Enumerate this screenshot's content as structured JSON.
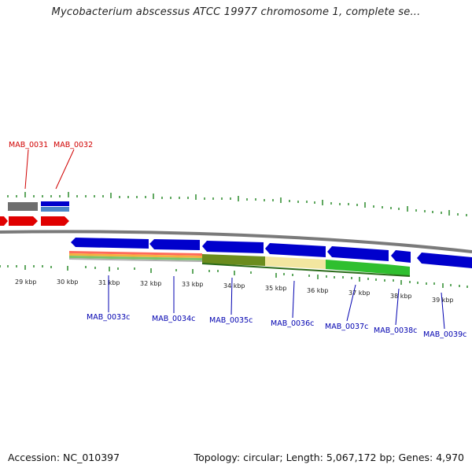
{
  "title": "Mycobacterium abscessus ATCC 19977 chromosome 1, complete se...",
  "footer": {
    "accession": "Accession: NC_010397",
    "summary": "Topology: circular; Length: 5,067,172 bp; Genes: 4,970"
  },
  "axis": {
    "unit": "kbp",
    "tick_labels": [
      "29 kbp",
      "30 kbp",
      "31 kbp",
      "32 kbp",
      "33 kbp",
      "34 kbp",
      "35 kbp",
      "36 kbp",
      "37 kbp",
      "38 kbp",
      "39 kbp"
    ]
  },
  "genes_forward": [
    "MAB_0031",
    "MAB_0032"
  ],
  "genes_reverse": [
    "MAB_0033c",
    "MAB_0034c",
    "MAB_0035c",
    "MAB_0036c",
    "MAB_0037c",
    "MAB_0038c",
    "MAB_0039c"
  ],
  "colors": {
    "forward_gene": "#e00000",
    "reverse_gene": "#0000cc",
    "backbone": "#808080",
    "tick": "#2a8a2a",
    "feature_gray": "#6e6e6e",
    "feature_steelblue": "#4a86c8",
    "feature_olive": "#6b8c1e",
    "feature_yellow": "#f2e6a0",
    "feature_green": "#2fbf2f",
    "track_red": "#ff6a5a",
    "track_orange": "#f5b040",
    "track_green": "#7ac46a"
  }
}
